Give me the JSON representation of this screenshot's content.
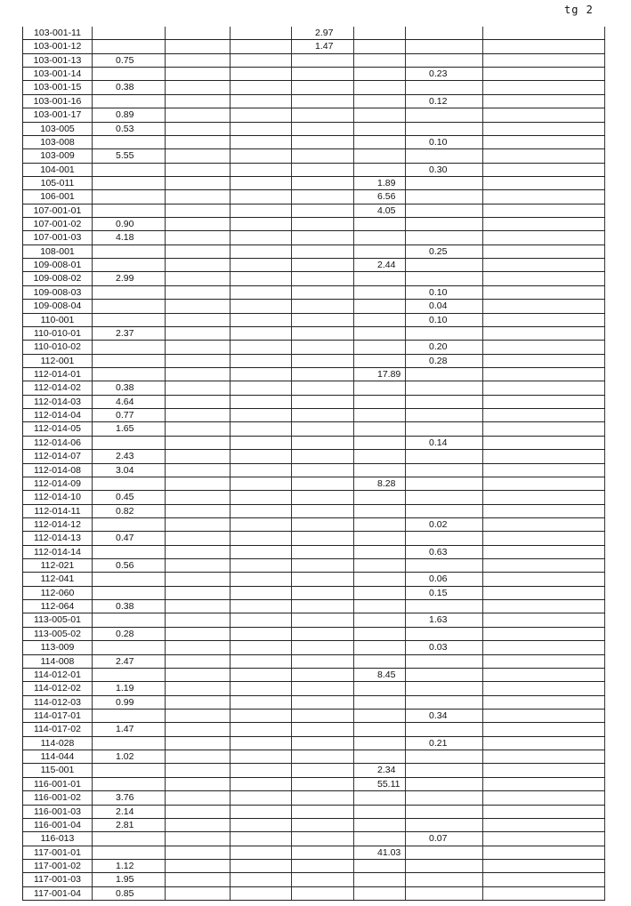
{
  "page_label": "tg 2",
  "rows": [
    [
      "103-001-11",
      "",
      "",
      "",
      "2.97",
      "",
      "",
      ""
    ],
    [
      "103-001-12",
      "",
      "",
      "",
      "1.47",
      "",
      "",
      ""
    ],
    [
      "103-001-13",
      "0.75",
      "",
      "",
      "",
      "",
      "",
      ""
    ],
    [
      "103-001-14",
      "",
      "",
      "",
      "",
      "",
      "0.23",
      ""
    ],
    [
      "103-001-15",
      "0.38",
      "",
      "",
      "",
      "",
      "",
      ""
    ],
    [
      "103-001-16",
      "",
      "",
      "",
      "",
      "",
      "0.12",
      ""
    ],
    [
      "103-001-17",
      "0.89",
      "",
      "",
      "",
      "",
      "",
      ""
    ],
    [
      "103-005",
      "0.53",
      "",
      "",
      "",
      "",
      "",
      ""
    ],
    [
      "103-008",
      "",
      "",
      "",
      "",
      "",
      "0.10",
      ""
    ],
    [
      "103-009",
      "5.55",
      "",
      "",
      "",
      "",
      "",
      ""
    ],
    [
      "104-001",
      "",
      "",
      "",
      "",
      "",
      "0.30",
      ""
    ],
    [
      "105-011",
      "",
      "",
      "",
      "",
      "1.89",
      "",
      ""
    ],
    [
      "106-001",
      "",
      "",
      "",
      "",
      "6.56",
      "",
      ""
    ],
    [
      "107-001-01",
      "",
      "",
      "",
      "",
      "4.05",
      "",
      ""
    ],
    [
      "107-001-02",
      "0.90",
      "",
      "",
      "",
      "",
      "",
      ""
    ],
    [
      "107-001-03",
      "4.18",
      "",
      "",
      "",
      "",
      "",
      ""
    ],
    [
      "108-001",
      "",
      "",
      "",
      "",
      "",
      "0.25",
      ""
    ],
    [
      "109-008-01",
      "",
      "",
      "",
      "",
      "2.44",
      "",
      ""
    ],
    [
      "109-008-02",
      "2.99",
      "",
      "",
      "",
      "",
      "",
      ""
    ],
    [
      "109-008-03",
      "",
      "",
      "",
      "",
      "",
      "0.10",
      ""
    ],
    [
      "109-008-04",
      "",
      "",
      "",
      "",
      "",
      "0.04",
      ""
    ],
    [
      "110-001",
      "",
      "",
      "",
      "",
      "",
      "0.10",
      ""
    ],
    [
      "110-010-01",
      "2.37",
      "",
      "",
      "",
      "",
      "",
      ""
    ],
    [
      "110-010-02",
      "",
      "",
      "",
      "",
      "",
      "0.20",
      ""
    ],
    [
      "112-001",
      "",
      "",
      "",
      "",
      "",
      "0.28",
      ""
    ],
    [
      "112-014-01",
      "",
      "",
      "",
      "",
      "17.89",
      "",
      ""
    ],
    [
      "112-014-02",
      "0.38",
      "",
      "",
      "",
      "",
      "",
      ""
    ],
    [
      "112-014-03",
      "4.64",
      "",
      "",
      "",
      "",
      "",
      ""
    ],
    [
      "112-014-04",
      "0.77",
      "",
      "",
      "",
      "",
      "",
      ""
    ],
    [
      "112-014-05",
      "1.65",
      "",
      "",
      "",
      "",
      "",
      ""
    ],
    [
      "112-014-06",
      "",
      "",
      "",
      "",
      "",
      "0.14",
      ""
    ],
    [
      "112-014-07",
      "2.43",
      "",
      "",
      "",
      "",
      "",
      ""
    ],
    [
      "112-014-08",
      "3.04",
      "",
      "",
      "",
      "",
      "",
      ""
    ],
    [
      "112-014-09",
      "",
      "",
      "",
      "",
      "8.28",
      "",
      ""
    ],
    [
      "112-014-10",
      "0.45",
      "",
      "",
      "",
      "",
      "",
      ""
    ],
    [
      "112-014-11",
      "0.82",
      "",
      "",
      "",
      "",
      "",
      ""
    ],
    [
      "112-014-12",
      "",
      "",
      "",
      "",
      "",
      "0.02",
      ""
    ],
    [
      "112-014-13",
      "0.47",
      "",
      "",
      "",
      "",
      "",
      ""
    ],
    [
      "112-014-14",
      "",
      "",
      "",
      "",
      "",
      "0.63",
      ""
    ],
    [
      "112-021",
      "0.56",
      "",
      "",
      "",
      "",
      "",
      ""
    ],
    [
      "112-041",
      "",
      "",
      "",
      "",
      "",
      "0.06",
      ""
    ],
    [
      "112-060",
      "",
      "",
      "",
      "",
      "",
      "0.15",
      ""
    ],
    [
      "112-064",
      "0.38",
      "",
      "",
      "",
      "",
      "",
      ""
    ],
    [
      "113-005-01",
      "",
      "",
      "",
      "",
      "",
      "1.63",
      ""
    ],
    [
      "113-005-02",
      "0.28",
      "",
      "",
      "",
      "",
      "",
      ""
    ],
    [
      "113-009",
      "",
      "",
      "",
      "",
      "",
      "0.03",
      ""
    ],
    [
      "114-008",
      "2.47",
      "",
      "",
      "",
      "",
      "",
      ""
    ],
    [
      "114-012-01",
      "",
      "",
      "",
      "",
      "8.45",
      "",
      ""
    ],
    [
      "114-012-02",
      "1.19",
      "",
      "",
      "",
      "",
      "",
      ""
    ],
    [
      "114-012-03",
      "0.99",
      "",
      "",
      "",
      "",
      "",
      ""
    ],
    [
      "114-017-01",
      "",
      "",
      "",
      "",
      "",
      "0.34",
      ""
    ],
    [
      "114-017-02",
      "1.47",
      "",
      "",
      "",
      "",
      "",
      ""
    ],
    [
      "114-028",
      "",
      "",
      "",
      "",
      "",
      "0.21",
      ""
    ],
    [
      "114-044",
      "1.02",
      "",
      "",
      "",
      "",
      "",
      ""
    ],
    [
      "115-001",
      "",
      "",
      "",
      "",
      "2.34",
      "",
      ""
    ],
    [
      "116-001-01",
      "",
      "",
      "",
      "",
      "55.11",
      "",
      ""
    ],
    [
      "116-001-02",
      "3.76",
      "",
      "",
      "",
      "",
      "",
      ""
    ],
    [
      "116-001-03",
      "2.14",
      "",
      "",
      "",
      "",
      "",
      ""
    ],
    [
      "116-001-04",
      "2.81",
      "",
      "",
      "",
      "",
      "",
      ""
    ],
    [
      "116-013",
      "",
      "",
      "",
      "",
      "",
      "0.07",
      ""
    ],
    [
      "117-001-01",
      "",
      "",
      "",
      "",
      "41.03",
      "",
      ""
    ],
    [
      "117-001-02",
      "1.12",
      "",
      "",
      "",
      "",
      "",
      ""
    ],
    [
      "117-001-03",
      "1.95",
      "",
      "",
      "",
      "",
      "",
      ""
    ],
    [
      "117-001-04",
      "0.85",
      "",
      "",
      "",
      "",
      "",
      ""
    ]
  ]
}
